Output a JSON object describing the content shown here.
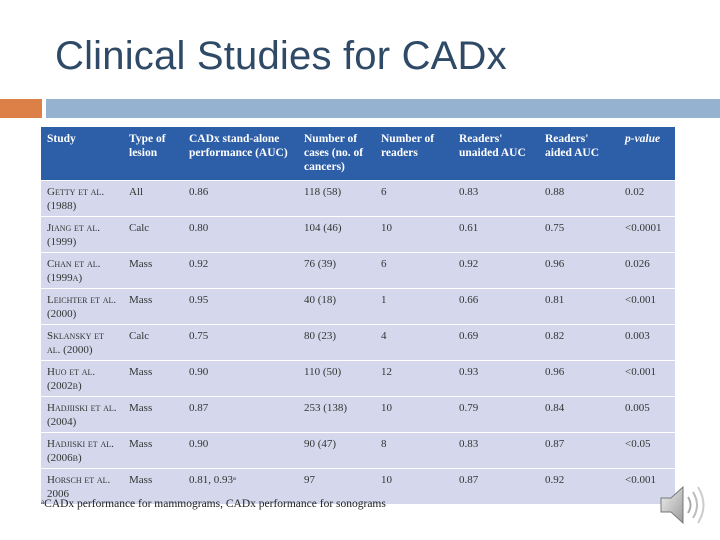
{
  "slide": {
    "title": "Clinical Studies for CADx",
    "footnote": "ᵃCADx performance for mammograms, CADx performance for sonograms"
  },
  "table": {
    "headers": [
      "Study",
      "Type of lesion",
      "CADx stand-alone performance (AUC)",
      "Number of cases (no. of cancers)",
      "Number of readers",
      "Readers' unaided AUC",
      "Readers' aided AUC",
      "p-value"
    ],
    "rows": [
      [
        "Getty et al. (1988)",
        "All",
        "0.86",
        "118 (58)",
        "6",
        "0.83",
        "0.88",
        "0.02"
      ],
      [
        "Jiang et al. (1999)",
        "Calc",
        "0.80",
        "104 (46)",
        "10",
        "0.61",
        "0.75",
        "<0.0001"
      ],
      [
        "Chan et al. (1999a)",
        "Mass",
        "0.92",
        "76 (39)",
        "6",
        "0.92",
        "0.96",
        "0.026"
      ],
      [
        "Leichter et al. (2000)",
        "Mass",
        "0.95",
        "40 (18)",
        "1",
        "0.66",
        "0.81",
        "<0.001"
      ],
      [
        "Sklansky et al. (2000)",
        "Calc",
        "0.75",
        "80 (23)",
        "4",
        "0.69",
        "0.82",
        "0.003"
      ],
      [
        "Huo et al. (2002b)",
        "Mass",
        "0.90",
        "110 (50)",
        "12",
        "0.93",
        "0.96",
        "<0.001"
      ],
      [
        "Hadjiiski et al. (2004)",
        "Mass",
        "0.87",
        "253 (138)",
        "10",
        "0.79",
        "0.84",
        "0.005"
      ],
      [
        "Hadjiski et al. (2006b)",
        "Mass",
        "0.90",
        "90 (47)",
        "8",
        "0.83",
        "0.87",
        "<0.05"
      ],
      [
        "Horsch et al. 2006",
        "Mass",
        "0.81, 0.93ᵃ",
        "97",
        "10",
        "0.87",
        "0.92",
        "<0.001"
      ]
    ]
  },
  "icons": {
    "audio": "speaker-icon"
  },
  "colors": {
    "title": "#2f4a66",
    "header_bg": "#2d5ea8",
    "row_bg": "#d5d8ec",
    "accent_orange": "#dd8047",
    "accent_blue": "#95b3d0"
  }
}
